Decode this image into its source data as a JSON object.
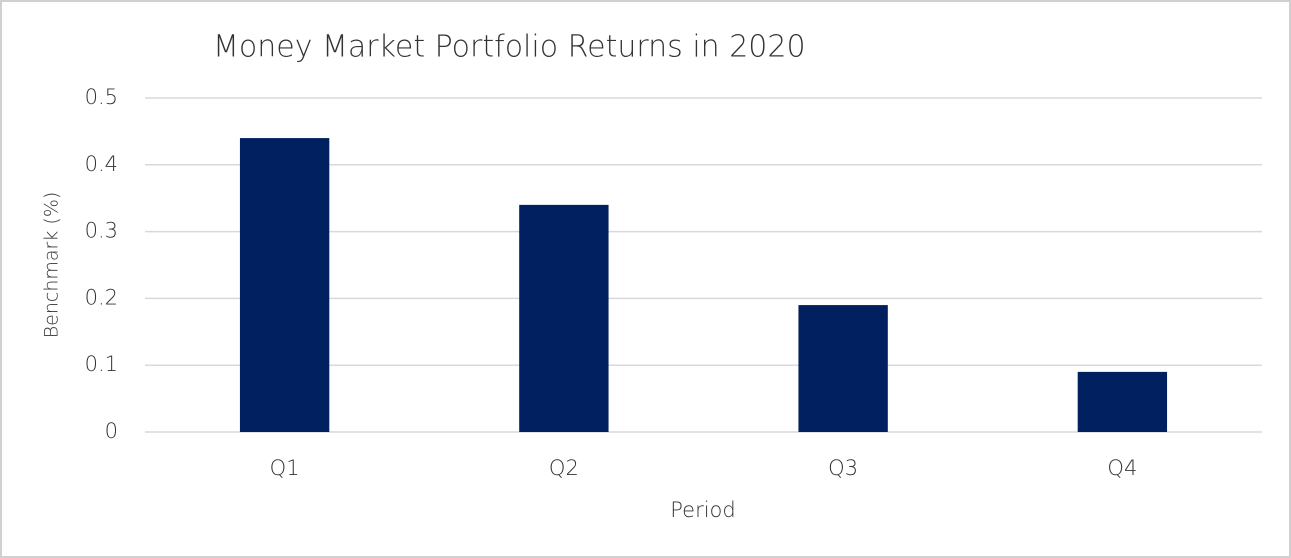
{
  "chart_data": {
    "type": "bar",
    "title": "Money Market Portfolio Returns in 2020",
    "x_label": "Period",
    "y_label": "Benchmark (%)",
    "categories": [
      "Q1",
      "Q2",
      "Q3",
      "Q4"
    ],
    "values": [
      0.44,
      0.34,
      0.19,
      0.09
    ],
    "color": "#002060",
    "ylim": [
      0,
      0.5
    ],
    "yticks": [
      0,
      0.1,
      0.2,
      0.3,
      0.4,
      0.5
    ],
    "grid": true
  }
}
